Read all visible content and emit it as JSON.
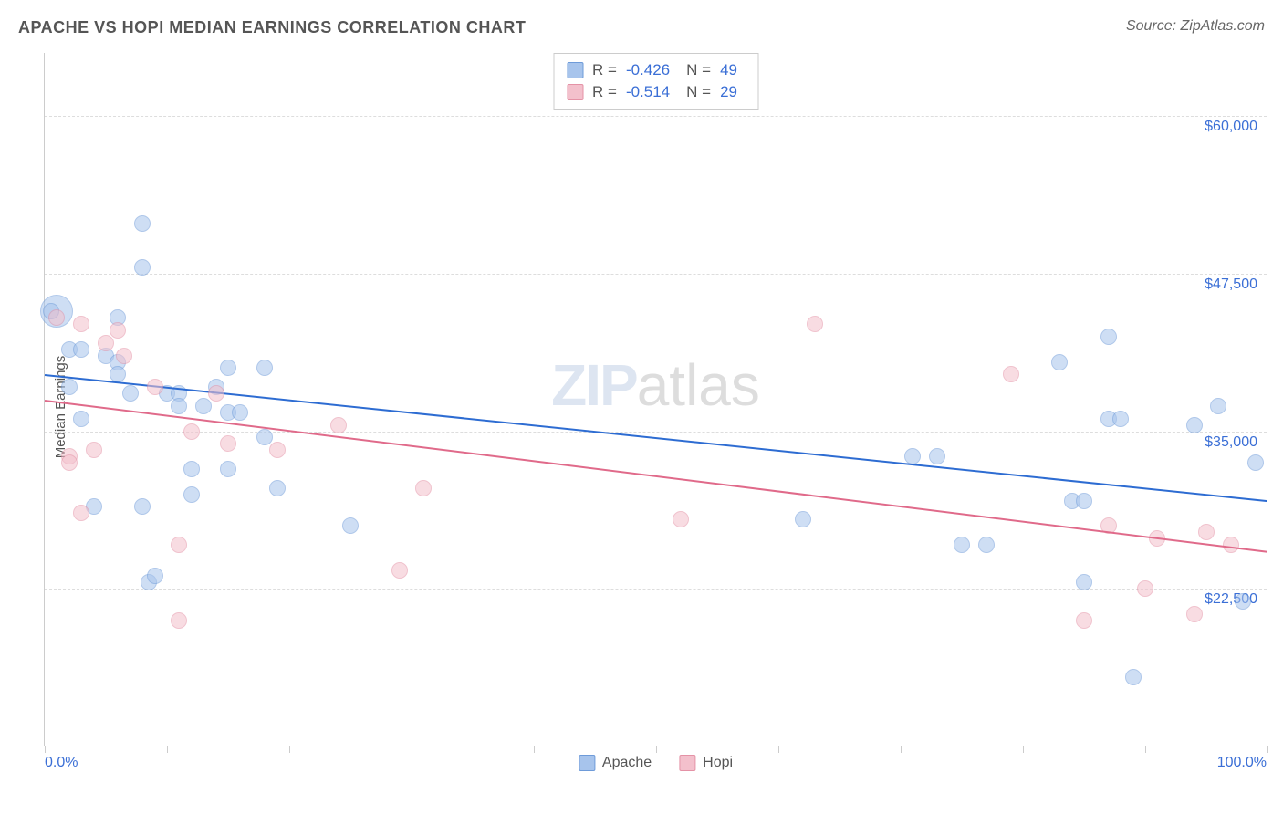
{
  "header": {
    "title": "APACHE VS HOPI MEDIAN EARNINGS CORRELATION CHART",
    "source": "Source: ZipAtlas.com"
  },
  "chart": {
    "type": "scatter",
    "ylabel": "Median Earnings",
    "xlim": [
      0,
      100
    ],
    "ylim": [
      10000,
      65000
    ],
    "xticks": [
      0,
      10,
      20,
      30,
      40,
      50,
      60,
      70,
      80,
      90,
      100
    ],
    "xlabel_min": "0.0%",
    "xlabel_max": "100.0%",
    "yticks": [
      {
        "v": 22500,
        "label": "$22,500"
      },
      {
        "v": 35000,
        "label": "$35,000"
      },
      {
        "v": 47500,
        "label": "$47,500"
      },
      {
        "v": 60000,
        "label": "$60,000"
      }
    ],
    "background_color": "#ffffff",
    "grid_color": "#dddddd",
    "axis_color": "#cccccc",
    "tick_label_color": "#3b6fd6",
    "point_radius": 9,
    "point_opacity": 0.55,
    "watermark": {
      "zip": "ZIP",
      "atlas": "atlas"
    },
    "series": [
      {
        "name": "Apache",
        "color_fill": "#a7c4ec",
        "color_border": "#6e9bd9",
        "trend_color": "#2d6cd2",
        "R": "-0.426",
        "N": "49",
        "trend": {
          "x1": 0,
          "y1": 39500,
          "x2": 100,
          "y2": 29500
        },
        "points": [
          {
            "x": 1,
            "y": 44500,
            "r": 18
          },
          {
            "x": 0.5,
            "y": 44500
          },
          {
            "x": 2,
            "y": 41500
          },
          {
            "x": 2,
            "y": 38500
          },
          {
            "x": 3,
            "y": 41500
          },
          {
            "x": 3,
            "y": 36000
          },
          {
            "x": 4,
            "y": 29000
          },
          {
            "x": 5,
            "y": 41000
          },
          {
            "x": 6,
            "y": 44000
          },
          {
            "x": 6,
            "y": 40500
          },
          {
            "x": 6,
            "y": 39500
          },
          {
            "x": 7,
            "y": 38000
          },
          {
            "x": 8,
            "y": 51500
          },
          {
            "x": 8,
            "y": 48000
          },
          {
            "x": 8,
            "y": 29000
          },
          {
            "x": 8.5,
            "y": 23000
          },
          {
            "x": 9,
            "y": 23500
          },
          {
            "x": 10,
            "y": 38000
          },
          {
            "x": 11,
            "y": 38000
          },
          {
            "x": 11,
            "y": 37000
          },
          {
            "x": 12,
            "y": 32000
          },
          {
            "x": 12,
            "y": 30000
          },
          {
            "x": 13,
            "y": 37000
          },
          {
            "x": 14,
            "y": 38500
          },
          {
            "x": 15,
            "y": 40000
          },
          {
            "x": 15,
            "y": 36500
          },
          {
            "x": 15,
            "y": 32000
          },
          {
            "x": 16,
            "y": 36500
          },
          {
            "x": 18,
            "y": 40000
          },
          {
            "x": 18,
            "y": 34500
          },
          {
            "x": 19,
            "y": 30500
          },
          {
            "x": 25,
            "y": 27500
          },
          {
            "x": 62,
            "y": 28000
          },
          {
            "x": 71,
            "y": 33000
          },
          {
            "x": 73,
            "y": 33000
          },
          {
            "x": 75,
            "y": 26000
          },
          {
            "x": 77,
            "y": 26000
          },
          {
            "x": 83,
            "y": 40500
          },
          {
            "x": 84,
            "y": 29500
          },
          {
            "x": 85,
            "y": 29500
          },
          {
            "x": 85,
            "y": 23000
          },
          {
            "x": 87,
            "y": 42500
          },
          {
            "x": 87,
            "y": 36000
          },
          {
            "x": 88,
            "y": 36000
          },
          {
            "x": 89,
            "y": 15500
          },
          {
            "x": 94,
            "y": 35500
          },
          {
            "x": 96,
            "y": 37000
          },
          {
            "x": 98,
            "y": 21500
          },
          {
            "x": 99,
            "y": 32500
          }
        ]
      },
      {
        "name": "Hopi",
        "color_fill": "#f3c0cc",
        "color_border": "#e492a6",
        "trend_color": "#e06a8a",
        "R": "-0.514",
        "N": "29",
        "trend": {
          "x1": 0,
          "y1": 37500,
          "x2": 100,
          "y2": 25500
        },
        "points": [
          {
            "x": 1,
            "y": 44000
          },
          {
            "x": 2,
            "y": 33000
          },
          {
            "x": 2,
            "y": 32500
          },
          {
            "x": 3,
            "y": 43500
          },
          {
            "x": 3,
            "y": 28500
          },
          {
            "x": 4,
            "y": 33500
          },
          {
            "x": 5,
            "y": 42000
          },
          {
            "x": 6,
            "y": 43000
          },
          {
            "x": 6.5,
            "y": 41000
          },
          {
            "x": 9,
            "y": 38500
          },
          {
            "x": 11,
            "y": 26000
          },
          {
            "x": 11,
            "y": 20000
          },
          {
            "x": 12,
            "y": 35000
          },
          {
            "x": 14,
            "y": 38000
          },
          {
            "x": 15,
            "y": 34000
          },
          {
            "x": 19,
            "y": 33500
          },
          {
            "x": 24,
            "y": 35500
          },
          {
            "x": 29,
            "y": 24000
          },
          {
            "x": 31,
            "y": 30500
          },
          {
            "x": 52,
            "y": 28000
          },
          {
            "x": 63,
            "y": 43500
          },
          {
            "x": 79,
            "y": 39500
          },
          {
            "x": 85,
            "y": 20000
          },
          {
            "x": 87,
            "y": 27500
          },
          {
            "x": 90,
            "y": 22500
          },
          {
            "x": 91,
            "y": 26500
          },
          {
            "x": 94,
            "y": 20500
          },
          {
            "x": 95,
            "y": 27000
          },
          {
            "x": 97,
            "y": 26000
          }
        ]
      }
    ],
    "stats_legend": {
      "R_label": "R =",
      "N_label": "N ="
    },
    "series_legend_labels": [
      "Apache",
      "Hopi"
    ]
  }
}
